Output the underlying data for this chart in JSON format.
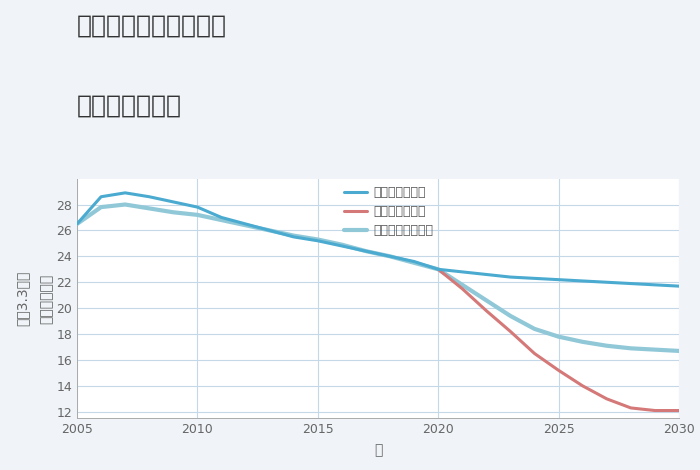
{
  "title_line1": "兵庫県姫路市御立北の",
  "title_line2": "土地の価格推移",
  "xlabel": "年",
  "ylim": [
    11.5,
    30
  ],
  "xlim": [
    2005,
    2030
  ],
  "yticks": [
    12,
    14,
    16,
    18,
    20,
    22,
    24,
    26,
    28
  ],
  "xticks": [
    2005,
    2010,
    2015,
    2020,
    2025,
    2030
  ],
  "background_color": "#f0f4f8",
  "plot_bg_color": "#ffffff",
  "grid_color": "#c5d8e8",
  "scenarios": {
    "good": {
      "label": "グッドシナリオ",
      "color": "#4aaad0",
      "linewidth": 2.2,
      "years": [
        2005,
        2006,
        2007,
        2008,
        2009,
        2010,
        2011,
        2012,
        2013,
        2014,
        2015,
        2016,
        2017,
        2018,
        2019,
        2020,
        2021,
        2022,
        2023,
        2024,
        2025,
        2026,
        2027,
        2028,
        2029,
        2030
      ],
      "values": [
        26.5,
        28.6,
        28.9,
        28.6,
        28.2,
        27.8,
        27.0,
        26.5,
        26.0,
        25.5,
        25.2,
        24.8,
        24.4,
        24.0,
        23.6,
        23.0,
        22.8,
        22.6,
        22.4,
        22.3,
        22.2,
        22.1,
        22.0,
        21.9,
        21.8,
        21.7
      ]
    },
    "bad": {
      "label": "バッドシナリオ",
      "color": "#d47878",
      "linewidth": 2.2,
      "years": [
        2020,
        2021,
        2022,
        2023,
        2024,
        2025,
        2026,
        2027,
        2028,
        2029,
        2030
      ],
      "values": [
        23.0,
        21.5,
        19.8,
        18.2,
        16.5,
        15.2,
        14.0,
        13.0,
        12.3,
        12.1,
        12.1
      ]
    },
    "normal": {
      "label": "ノーマルシナリオ",
      "color": "#90c8d8",
      "linewidth": 3.0,
      "years": [
        2005,
        2006,
        2007,
        2008,
        2009,
        2010,
        2011,
        2012,
        2013,
        2014,
        2015,
        2016,
        2017,
        2018,
        2019,
        2020,
        2021,
        2022,
        2023,
        2024,
        2025,
        2026,
        2027,
        2028,
        2029,
        2030
      ],
      "values": [
        26.5,
        27.8,
        28.0,
        27.7,
        27.4,
        27.2,
        26.8,
        26.4,
        26.0,
        25.6,
        25.3,
        24.9,
        24.4,
        24.0,
        23.5,
        23.0,
        21.8,
        20.6,
        19.4,
        18.4,
        17.8,
        17.4,
        17.1,
        16.9,
        16.8,
        16.7
      ]
    }
  },
  "title_fontsize": 18,
  "axis_label_fontsize": 10,
  "tick_fontsize": 9,
  "legend_fontsize": 9
}
